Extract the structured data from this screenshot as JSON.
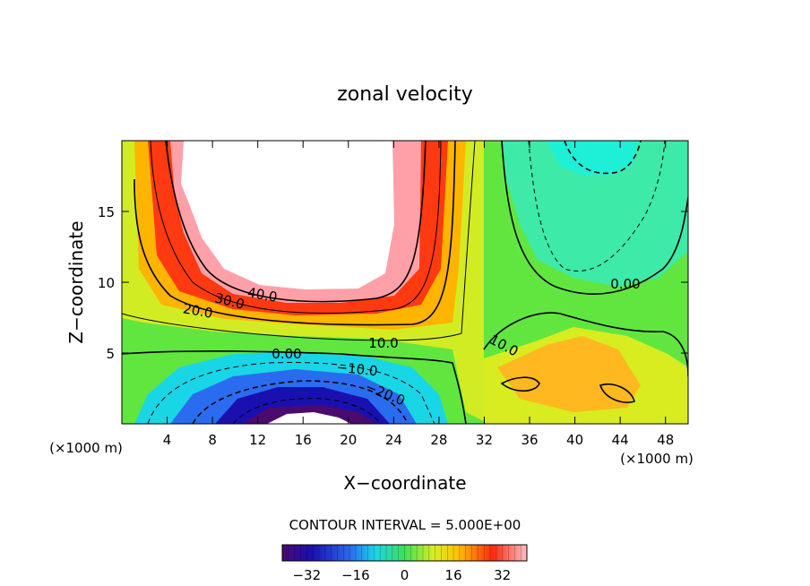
{
  "chart_data": {
    "type": "heatmap",
    "title": "zonal velocity",
    "xlabel": "X−coordinate",
    "ylabel": "Z−coordinate",
    "x_units": "(×1000 m)",
    "z_units": "(×1000 m)",
    "xlim": [
      0,
      50
    ],
    "ylim": [
      0,
      20
    ],
    "x_ticks": [
      4,
      8,
      12,
      16,
      20,
      24,
      28,
      32,
      36,
      40,
      44,
      48
    ],
    "x_tick_labels": [
      "4",
      "8",
      "12",
      "16",
      "20",
      "24",
      "28",
      "32",
      "36",
      "40",
      "44",
      "48"
    ],
    "y_ticks": [
      5,
      10,
      15
    ],
    "y_tick_labels": [
      "5",
      "10",
      "15"
    ],
    "contour_interval_text": "CONTOUR INTERVAL = 5.000E+00",
    "contour_interval": 5.0,
    "colorbar": {
      "min": -40,
      "max": 40,
      "ticks": [
        -32,
        -16,
        0,
        16,
        32
      ],
      "tick_labels": [
        "−32",
        "−16",
        "0",
        "16",
        "32"
      ]
    },
    "contour_labels": [
      {
        "text": "40.0",
        "x": 15.0,
        "z": 9.2
      },
      {
        "text": "30.0",
        "x": 11.8,
        "z": 8.6
      },
      {
        "text": "20.0",
        "x": 8.2,
        "z": 7.8
      },
      {
        "text": "10.0",
        "x": 23.5,
        "z": 5.6
      },
      {
        "text": "0.00",
        "x": 14.0,
        "z": 5.0
      },
      {
        "text": "−10.0",
        "x": 21.5,
        "z": 3.7
      },
      {
        "text": "−20.0",
        "x": 23.5,
        "z": 2.2
      },
      {
        "text": "10.0",
        "x": 34.0,
        "z": 5.3
      },
      {
        "text": "0.00",
        "x": 44.0,
        "z": 10.0
      }
    ],
    "features": [
      {
        "desc": "positive jet core (>45, shown white)",
        "x_range": [
          5,
          24
        ],
        "z_range": [
          9,
          20
        ],
        "max": 55
      },
      {
        "desc": "negative low-level core",
        "center_x": 17,
        "center_z": 0.3,
        "min": -40
      },
      {
        "desc": "upper-right negative region",
        "center_x": 42,
        "center_z": 19,
        "min": -10
      },
      {
        "desc": "lower-right positive patch",
        "center_x": 40,
        "center_z": 4,
        "max": 20
      }
    ]
  }
}
